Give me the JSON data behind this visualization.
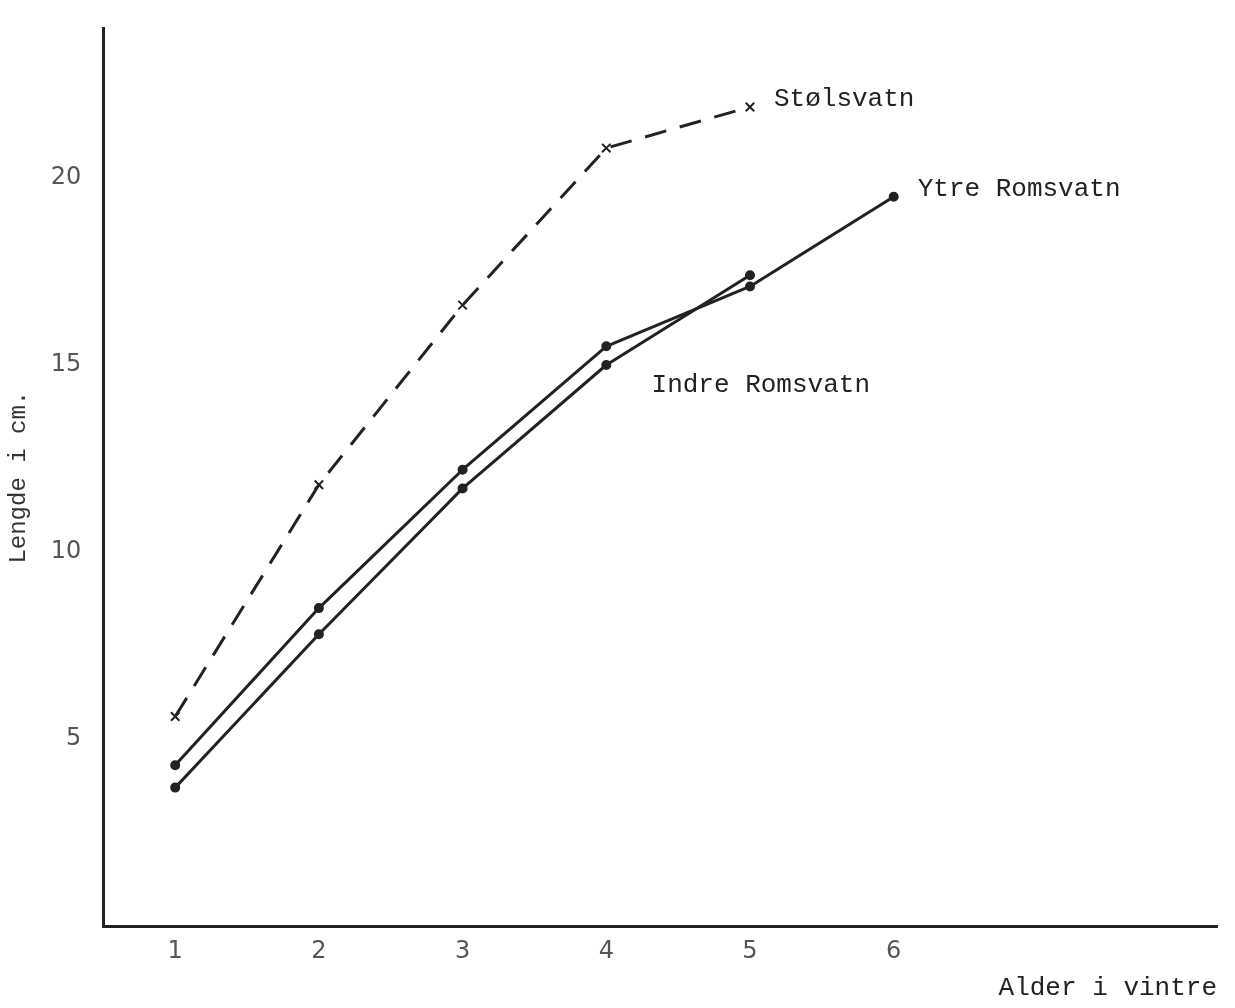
{
  "chart_data": {
    "type": "line",
    "xlabel": "Alder i vintre",
    "ylabel": "Lengde i cm.",
    "xlim": [
      0.5,
      8.25
    ],
    "xticks": [
      1,
      2,
      3,
      4,
      5,
      6
    ],
    "ylim": [
      0,
      24
    ],
    "yticks": [
      5,
      10,
      15,
      20
    ],
    "grid": false,
    "legend": false,
    "series": [
      {
        "name": "Stølsvatn",
        "color": "#222222",
        "x": [
          1,
          2,
          3,
          4,
          5
        ],
        "values": [
          5.6,
          11.8,
          16.6,
          20.8,
          21.9
        ],
        "line_style": "dashed",
        "marker": "cross"
      },
      {
        "name": "Ytre Romsvatn",
        "color": "#222222",
        "x": [
          1,
          2,
          3,
          4,
          5,
          6
        ],
        "values": [
          4.3,
          8.5,
          12.2,
          15.5,
          17.1,
          19.5
        ],
        "line_style": "solid",
        "marker": "circle"
      },
      {
        "name": "Indre Romsvatn",
        "color": "#222222",
        "x": [
          1,
          2,
          3,
          4,
          5
        ],
        "values": [
          3.7,
          7.8,
          11.7,
          15.0,
          17.4
        ],
        "line_style": "solid",
        "marker": "circle"
      }
    ]
  }
}
